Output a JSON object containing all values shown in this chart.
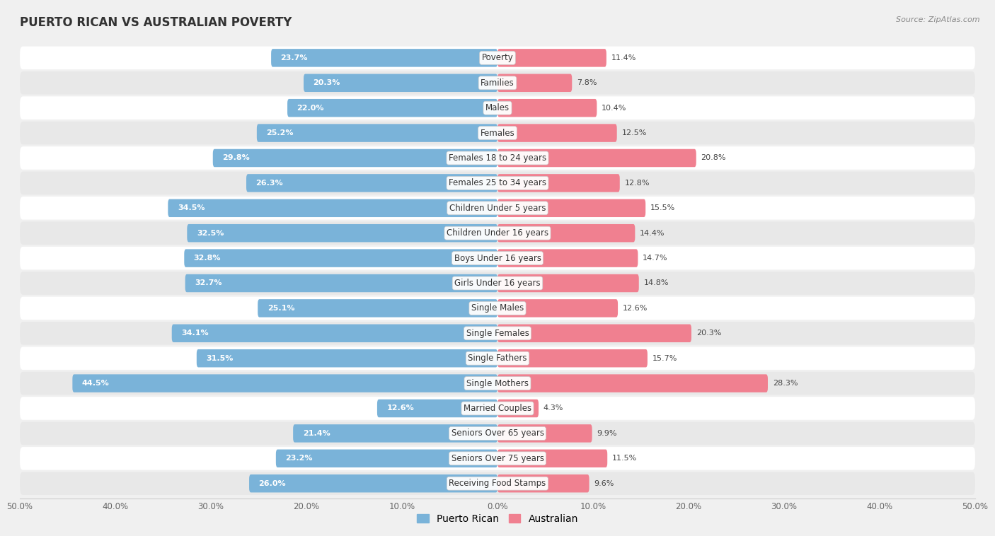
{
  "title": "PUERTO RICAN VS AUSTRALIAN POVERTY",
  "source": "Source: ZipAtlas.com",
  "categories": [
    "Poverty",
    "Families",
    "Males",
    "Females",
    "Females 18 to 24 years",
    "Females 25 to 34 years",
    "Children Under 5 years",
    "Children Under 16 years",
    "Boys Under 16 years",
    "Girls Under 16 years",
    "Single Males",
    "Single Females",
    "Single Fathers",
    "Single Mothers",
    "Married Couples",
    "Seniors Over 65 years",
    "Seniors Over 75 years",
    "Receiving Food Stamps"
  ],
  "puerto_rican": [
    23.7,
    20.3,
    22.0,
    25.2,
    29.8,
    26.3,
    34.5,
    32.5,
    32.8,
    32.7,
    25.1,
    34.1,
    31.5,
    44.5,
    12.6,
    21.4,
    23.2,
    26.0
  ],
  "australian": [
    11.4,
    7.8,
    10.4,
    12.5,
    20.8,
    12.8,
    15.5,
    14.4,
    14.7,
    14.8,
    12.6,
    20.3,
    15.7,
    28.3,
    4.3,
    9.9,
    11.5,
    9.6
  ],
  "puerto_rican_color": "#7ab3d9",
  "australian_color": "#f08090",
  "background_color": "#f0f0f0",
  "row_bg_light": "#ffffff",
  "row_bg_dark": "#e8e8e8",
  "axis_max": 50.0,
  "label_fontsize": 8.5,
  "title_fontsize": 12,
  "legend_fontsize": 10,
  "value_fontsize": 8
}
